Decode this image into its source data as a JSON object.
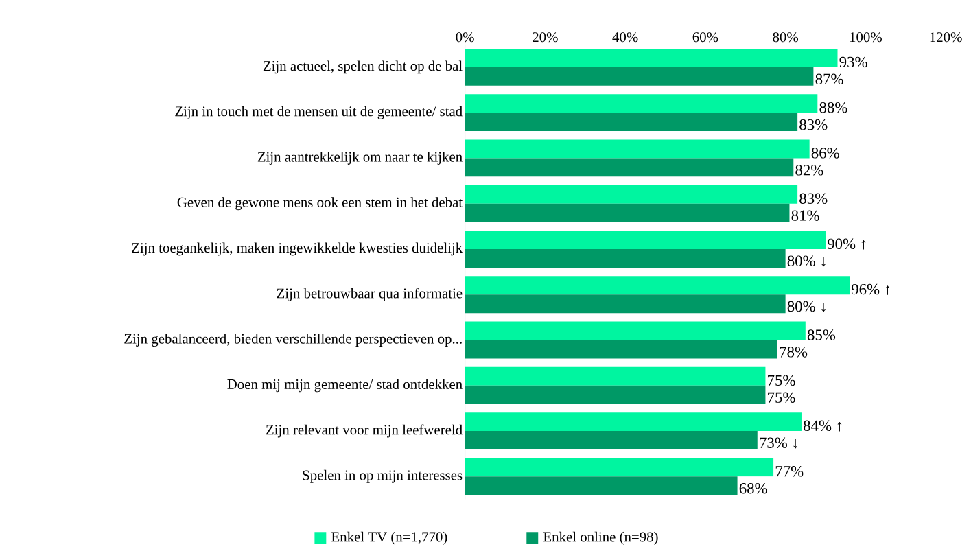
{
  "chart_data": {
    "type": "bar",
    "orientation": "horizontal",
    "categories": [
      "Zijn actueel, spelen dicht op de bal",
      "Zijn in touch met de mensen uit de gemeente/ stad",
      "Zijn aantrekkelijk om naar te kijken",
      "Geven de gewone mens ook een stem in het debat",
      "Zijn toegankelijk, maken ingewikkelde kwesties duidelijk",
      "Zijn betrouwbaar qua informatie",
      "Zijn gebalanceerd, bieden verschillende perspectieven op...",
      "Doen mij mijn gemeente/ stad ontdekken",
      "Zijn relevant voor mijn leefwereld",
      "Spelen in op mijn interesses"
    ],
    "series": [
      {
        "name": "Enkel TV (n=1,770)",
        "color": "#00f5a0",
        "values": [
          93,
          88,
          86,
          83,
          90,
          96,
          85,
          75,
          84,
          77
        ],
        "value_labels": [
          "93%",
          "88%",
          "86%",
          "83%",
          "90% ↑",
          "96% ↑",
          "85%",
          "75%",
          "84% ↑",
          "77%"
        ]
      },
      {
        "name": "Enkel online (n=98)",
        "color": "#009966",
        "values": [
          87,
          83,
          82,
          81,
          80,
          80,
          78,
          75,
          73,
          68
        ],
        "value_labels": [
          "87%",
          "83%",
          "82%",
          "81%",
          "80% ↓",
          "80% ↓",
          "78%",
          "75%",
          "73% ↓",
          "68%"
        ]
      }
    ],
    "xlim": [
      0,
      120
    ],
    "xticks": [
      {
        "value": 0,
        "label": "0%"
      },
      {
        "value": 20,
        "label": "20%"
      },
      {
        "value": 40,
        "label": "40%"
      },
      {
        "value": 60,
        "label": "60%"
      },
      {
        "value": 80,
        "label": "80%"
      },
      {
        "value": 100,
        "label": "100%"
      },
      {
        "value": 120,
        "label": "120%"
      }
    ],
    "grid": false,
    "legend": "bottom"
  }
}
